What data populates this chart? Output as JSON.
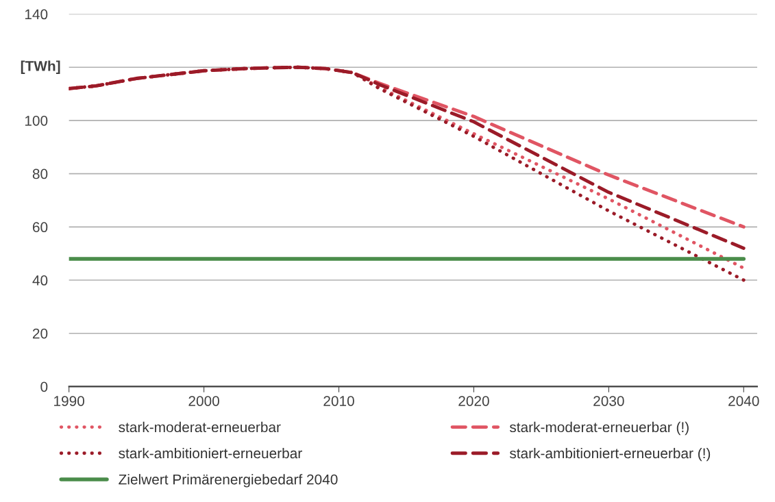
{
  "chart_data": {
    "type": "line",
    "ylabel": "[TWh]",
    "xlim": [
      1990,
      2041
    ],
    "xticks": [
      1990,
      2000,
      2010,
      2020,
      2030,
      2040
    ],
    "ylim": [
      0,
      140
    ],
    "yticks": [
      0,
      20,
      40,
      60,
      80,
      100,
      {
        "value": 120,
        "label": null
      },
      140
    ],
    "grid": "y",
    "legend": "bottom",
    "marker": "none",
    "x": [
      1990,
      1992,
      1995,
      2000,
      2003,
      2005,
      2007,
      2009,
      2011,
      2013,
      2020,
      2030,
      2040
    ],
    "series": [
      {
        "name": "stark-moderat-erneuerbar",
        "color": "#e05563",
        "line_style": "dotted",
        "values": [
          112,
          113,
          115.8,
          118.7,
          119.5,
          119.8,
          120,
          119.5,
          118,
          112.5,
          95,
          70.5,
          44.5
        ]
      },
      {
        "name": "stark-moderat-erneuerbar (!)",
        "color": "#e05563",
        "line_style": "dashed",
        "values": [
          112,
          113,
          115.8,
          118.7,
          119.5,
          119.8,
          120,
          119.5,
          118,
          114,
          101.5,
          79.5,
          60
        ]
      },
      {
        "name": "stark-ambitioniert-erneuerbar",
        "color": "#9b1b28",
        "line_style": "dotted",
        "values": [
          112,
          113,
          115.8,
          118.7,
          119.5,
          119.8,
          120,
          119.5,
          118,
          112,
          94,
          66,
          40
        ]
      },
      {
        "name": "stark-ambitioniert-erneuerbar (!)",
        "color": "#9b1b28",
        "line_style": "dashed",
        "values": [
          112,
          113,
          115.8,
          118.7,
          119.5,
          119.8,
          120,
          119.5,
          118,
          113.5,
          99.5,
          73,
          52
        ]
      },
      {
        "name": "Zielwert Primärenergiebedarf 2040",
        "color": "#4a8c4a",
        "line_style": "solid",
        "x": [
          1990,
          2040
        ],
        "values": [
          48,
          48
        ]
      }
    ]
  }
}
